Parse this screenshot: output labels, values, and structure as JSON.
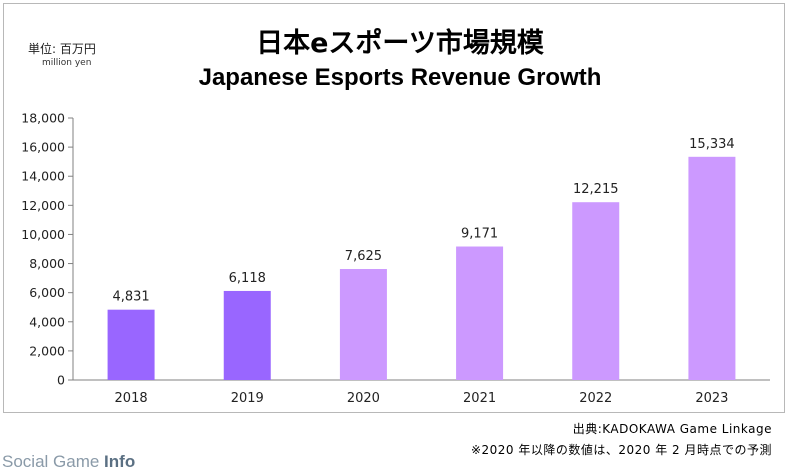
{
  "header": {
    "unit_jp": "単位: 百万円",
    "unit_en": "million yen",
    "title_jp": "日本eスポーツ市場規模",
    "title_en": "Japanese Esports Revenue Growth"
  },
  "footer": {
    "source": "出典:KADOKAWA Game Linkage",
    "note": "※2020 年以降の数値は、2020 年 2 月時点での予測"
  },
  "watermark": {
    "part1": "Social Game ",
    "part2": "Info"
  },
  "chart_data": {
    "type": "bar",
    "title": "Japanese Esports Revenue Growth",
    "categories": [
      "2018",
      "2019",
      "2020",
      "2021",
      "2022",
      "2023"
    ],
    "values": [
      4831,
      6118,
      7625,
      9171,
      12215,
      15334
    ],
    "value_labels": [
      "4,831",
      "6,118",
      "7,625",
      "9,171",
      "12,215",
      "15,334"
    ],
    "ylim": [
      0,
      18000
    ],
    "yticks": [
      0,
      2000,
      4000,
      6000,
      8000,
      10000,
      12000,
      14000,
      16000,
      18000
    ],
    "ytick_labels": [
      "0",
      "2,000",
      "4,000",
      "6,000",
      "8,000",
      "10,000",
      "12,000",
      "14,000",
      "16,000",
      "18,000"
    ],
    "grid": false,
    "colors": {
      "actual": "#9966ff",
      "forecast": "#cc99ff"
    },
    "bar_kind": [
      "actual",
      "actual",
      "forecast",
      "forecast",
      "forecast",
      "forecast"
    ]
  }
}
